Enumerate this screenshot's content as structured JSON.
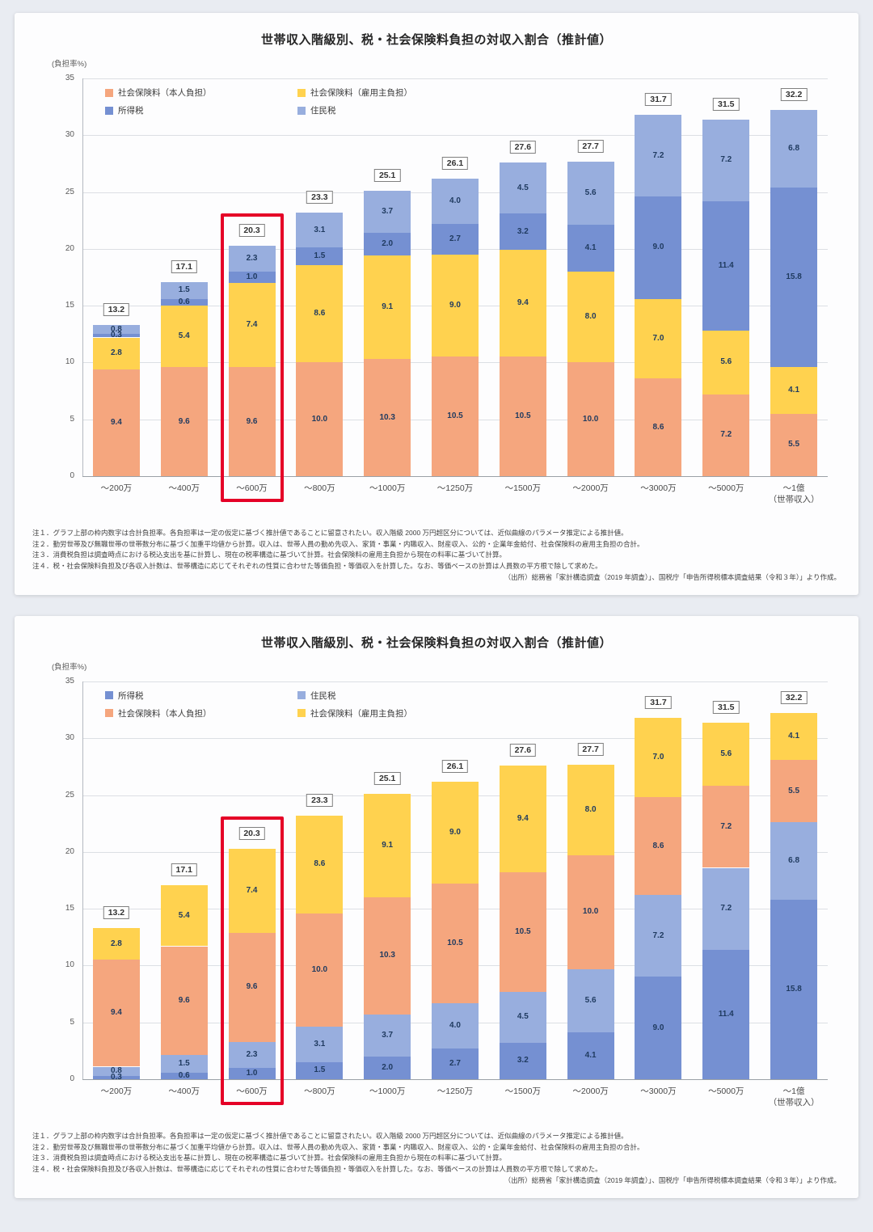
{
  "page": {
    "background": "#e9ecf2"
  },
  "panels": [
    {
      "title": "世帯収入階級別、税・社会保険料負担の対収入割合（推計値）",
      "y_axis_unit": "(負担率%)",
      "x_axis_note": "（世帯収入）",
      "legend_rows": [
        [
          "社会保険料（本人負担）",
          "社会保険料（雇用主負担）"
        ],
        [
          "所得税",
          "住民税"
        ]
      ],
      "highlight_category": "～600万",
      "notes": [
        "注１．グラフ上部の枠内数字は合計負担率。各負担率は一定の仮定に基づく推計値であることに留意されたい。収入階級 2000 万円超区分については、近似曲線のパラメータ推定による推計値。",
        "注２．勤労世帯及び無職世帯の世帯数分布に基づく加重平均値から計算。収入は、世帯人員の勤め先収入、家賃・事業・内職収入、財産収入、公的・企業年金給付、社会保険料の雇用主負担の合計。",
        "注３．消費税負担は調査時点における税込支出を基に計算し、現在の税率構造に基づいて計算。社会保険料の雇用主負担から現在の料率に基づいて計算。",
        "注４．税・社会保険料負担及び各収入計数は、世帯構造に応じてそれぞれの性質に合わせた等価負担・等価収入を計算した。なお、等価ベースの計算は人員数の平方根で除して求めた。"
      ],
      "source": "（出所）総務省「家計構造調査（2019 年調査）」、国税庁「申告所得税標本調査結果（令和３年）」より作成。"
    },
    {
      "title": "世帯収入階級別、税・社会保険料負担の対収入割合（推計値）",
      "y_axis_unit": "(負担率%)",
      "x_axis_note": "（世帯収入）",
      "legend_rows": [
        [
          "所得税",
          "住民税"
        ],
        [
          "社会保険料（本人負担）",
          "社会保険料（雇用主負担）"
        ]
      ],
      "highlight_category": "～600万",
      "notes": [
        "注１．グラフ上部の枠内数字は合計負担率。各負担率は一定の仮定に基づく推計値であることに留意されたい。収入階級 2000 万円超区分については、近似曲線のパラメータ推定による推計値。",
        "注２．勤労世帯及び無職世帯の世帯数分布に基づく加重平均値から計算。収入は、世帯人員の勤め先収入、家賃・事業・内職収入、財産収入、公的・企業年金給付、社会保険料の雇用主負担の合計。",
        "注３．消費税負担は調査時点における税込支出を基に計算し、現在の税率構造に基づいて計算。社会保険料の雇用主負担から現在の料率に基づいて計算。",
        "注４．税・社会保険料負担及び各収入計数は、世帯構造に応じてそれぞれの性質に合わせた等価負担・等価収入を計算した。なお、等価ベースの計算は人員数の平方根で除して求めた。"
      ],
      "source": "（出所）総務省「家計構造調査（2019 年調査）」、国税庁「申告所得税標本調査結果（令和３年）」より作成。"
    }
  ],
  "chart_data": [
    {
      "type": "bar",
      "stacked": true,
      "title": "世帯収入階級別、税・社会保険料負担の対収入割合（推計値）",
      "categories": [
        "～200万",
        "～400万",
        "～600万",
        "～800万",
        "～1000万",
        "～1250万",
        "～1500万",
        "～2000万",
        "～3000万",
        "～5000万",
        "～1億"
      ],
      "series": [
        {
          "name": "社会保険料（本人負担）",
          "color": "#f5a67e",
          "values": [
            9.4,
            9.6,
            9.6,
            10.0,
            10.3,
            10.5,
            10.5,
            10.0,
            8.6,
            7.2,
            5.5
          ]
        },
        {
          "name": "社会保険料（雇用主負担）",
          "color": "#ffd24f",
          "values": [
            2.8,
            5.4,
            7.4,
            8.6,
            9.1,
            9.0,
            9.4,
            8.0,
            7.0,
            5.6,
            4.1
          ]
        },
        {
          "name": "所得税",
          "color": "#7590d2",
          "values": [
            0.3,
            0.6,
            1.0,
            1.5,
            2.0,
            2.7,
            3.2,
            4.1,
            9.0,
            11.4,
            15.8
          ]
        },
        {
          "name": "住民税",
          "color": "#98aede",
          "values": [
            0.8,
            1.5,
            2.3,
            3.1,
            3.7,
            4.0,
            4.5,
            5.6,
            7.2,
            7.2,
            6.8
          ]
        }
      ],
      "totals": [
        13.2,
        17.1,
        20.3,
        23.3,
        25.1,
        26.1,
        27.6,
        27.7,
        31.7,
        31.5,
        32.2
      ],
      "ylim": [
        0,
        35
      ],
      "y_ticks": [
        0,
        5,
        10,
        15,
        20,
        25,
        30,
        35
      ],
      "grid": true,
      "legend_position": "top-left-inside",
      "highlight_index": 2,
      "highlight_color": "#e50027"
    },
    {
      "type": "bar",
      "stacked": true,
      "title": "世帯収入階級別、税・社会保険料負担の対収入割合（推計値）",
      "categories": [
        "～200万",
        "～400万",
        "～600万",
        "～800万",
        "～1000万",
        "～1250万",
        "～1500万",
        "～2000万",
        "～3000万",
        "～5000万",
        "～1億"
      ],
      "series": [
        {
          "name": "所得税",
          "color": "#7590d2",
          "values": [
            0.3,
            0.6,
            1.0,
            1.5,
            2.0,
            2.7,
            3.2,
            4.1,
            9.0,
            11.4,
            15.8
          ]
        },
        {
          "name": "住民税",
          "color": "#98aede",
          "values": [
            0.8,
            1.5,
            2.3,
            3.1,
            3.7,
            4.0,
            4.5,
            5.6,
            7.2,
            7.2,
            6.8
          ]
        },
        {
          "name": "社会保険料（本人負担）",
          "color": "#f5a67e",
          "values": [
            9.4,
            9.6,
            9.6,
            10.0,
            10.3,
            10.5,
            10.5,
            10.0,
            8.6,
            7.2,
            5.5
          ]
        },
        {
          "name": "社会保険料（雇用主負担）",
          "color": "#ffd24f",
          "values": [
            2.8,
            5.4,
            7.4,
            8.6,
            9.1,
            9.0,
            9.4,
            8.0,
            7.0,
            5.6,
            4.1
          ]
        }
      ],
      "totals": [
        13.2,
        17.1,
        20.3,
        23.3,
        25.1,
        26.1,
        27.6,
        27.7,
        31.7,
        31.5,
        32.2
      ],
      "ylim": [
        0,
        35
      ],
      "y_ticks": [
        0,
        5,
        10,
        15,
        20,
        25,
        30,
        35
      ],
      "grid": true,
      "legend_position": "top-left-inside",
      "highlight_index": 2,
      "highlight_color": "#e50027"
    }
  ]
}
